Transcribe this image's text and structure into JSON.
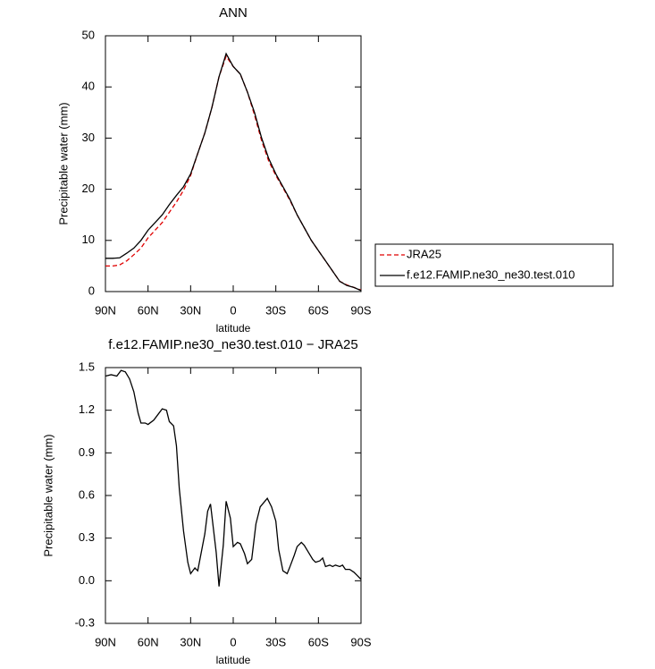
{
  "chart_data": [
    {
      "type": "line",
      "title": "ANN",
      "xlabel": "latitude",
      "ylabel": "Precipitable water (mm)",
      "x": [
        90,
        85,
        80,
        75,
        70,
        65,
        60,
        55,
        50,
        45,
        40,
        35,
        30,
        25,
        20,
        15,
        10,
        5,
        0,
        -5,
        -10,
        -15,
        -20,
        -25,
        -30,
        -35,
        -40,
        -45,
        -50,
        -55,
        -60,
        -65,
        -70,
        -75,
        -80,
        -85,
        -90
      ],
      "series": [
        {
          "name": "JRA25",
          "color": "#e00000",
          "linestyle": "dashed",
          "values": [
            5,
            5,
            5.2,
            6,
            7.2,
            8.5,
            10.5,
            12,
            13.5,
            15.5,
            17.5,
            19.8,
            22.7,
            27,
            31,
            36,
            42,
            46,
            44,
            42.5,
            39,
            34.5,
            29.5,
            25.5,
            22.7,
            20.3,
            17.8,
            15,
            12.5,
            10,
            8,
            6,
            4,
            2,
            1.3,
            0.8,
            0.3
          ]
        },
        {
          "name": "f.e12.FAMIP.ne30_ne30.test.010",
          "color": "#000000",
          "linestyle": "solid",
          "values": [
            6.5,
            6.5,
            6.6,
            7.5,
            8.5,
            10,
            12,
            13.5,
            15,
            17,
            18.8,
            20.5,
            23,
            27,
            31,
            36,
            42,
            46.5,
            44,
            42.5,
            39,
            35,
            30,
            26,
            23,
            20.5,
            18,
            15,
            12.5,
            10,
            8,
            6,
            4,
            2,
            1.2,
            0.8,
            0.2
          ]
        }
      ],
      "legend": "right",
      "xlim": [
        90,
        -90
      ],
      "xticks": [
        {
          "value": 90,
          "label": "90N"
        },
        {
          "value": 60,
          "label": "60N"
        },
        {
          "value": 30,
          "label": "30N"
        },
        0,
        {
          "value": -30,
          "label": "30S"
        },
        {
          "value": -60,
          "label": "60S"
        },
        {
          "value": -90,
          "label": "90S"
        }
      ],
      "ylim": [
        0,
        50
      ],
      "yticks": [
        0,
        10,
        20,
        30,
        40,
        50
      ]
    },
    {
      "type": "line",
      "title": "f.e12.FAMIP.ne30_ne30.test.010 − JRA25",
      "xlabel": "latitude",
      "ylabel": "Precipitable water (mm)",
      "x": [
        90,
        86,
        82,
        79,
        76,
        73,
        70,
        67,
        65,
        62,
        60,
        56,
        53,
        50,
        47,
        45,
        42,
        40,
        38,
        35,
        32,
        30,
        27,
        25,
        20,
        18,
        16,
        12,
        10,
        7,
        5,
        2,
        0,
        -3,
        -5,
        -8,
        -10,
        -13,
        -16,
        -19,
        -24,
        -27,
        -30,
        -32,
        -35,
        -38,
        -40,
        -43,
        -45,
        -48,
        -50,
        -53,
        -56,
        -58,
        -61,
        -63,
        -65,
        -68,
        -70,
        -72,
        -75,
        -77,
        -79,
        -82,
        -85,
        -87,
        -90
      ],
      "values": [
        1.44,
        1.45,
        1.44,
        1.48,
        1.47,
        1.42,
        1.33,
        1.18,
        1.11,
        1.11,
        1.1,
        1.13,
        1.17,
        1.21,
        1.2,
        1.12,
        1.09,
        0.95,
        0.65,
        0.35,
        0.13,
        0.05,
        0.09,
        0.07,
        0.33,
        0.49,
        0.54,
        0.2,
        -0.04,
        0.25,
        0.56,
        0.44,
        0.24,
        0.27,
        0.26,
        0.19,
        0.12,
        0.15,
        0.4,
        0.52,
        0.58,
        0.52,
        0.42,
        0.22,
        0.07,
        0.05,
        0.1,
        0.18,
        0.24,
        0.27,
        0.25,
        0.2,
        0.15,
        0.13,
        0.14,
        0.16,
        0.1,
        0.11,
        0.1,
        0.11,
        0.1,
        0.11,
        0.08,
        0.08,
        0.06,
        0.04,
        0.01
      ],
      "color": "#000000",
      "xlim": [
        90,
        -90
      ],
      "xticks": [
        {
          "value": 90,
          "label": "90N"
        },
        {
          "value": 60,
          "label": "60N"
        },
        {
          "value": 30,
          "label": "30N"
        },
        0,
        {
          "value": -30,
          "label": "30S"
        },
        {
          "value": -60,
          "label": "60S"
        },
        {
          "value": -90,
          "label": "90S"
        }
      ],
      "ylim": [
        -0.3,
        1.5
      ],
      "yticks": [
        -0.3,
        {
          "value": 0,
          "label": "0.0"
        },
        0.3,
        0.6,
        0.9,
        1.2,
        1.5
      ]
    }
  ]
}
